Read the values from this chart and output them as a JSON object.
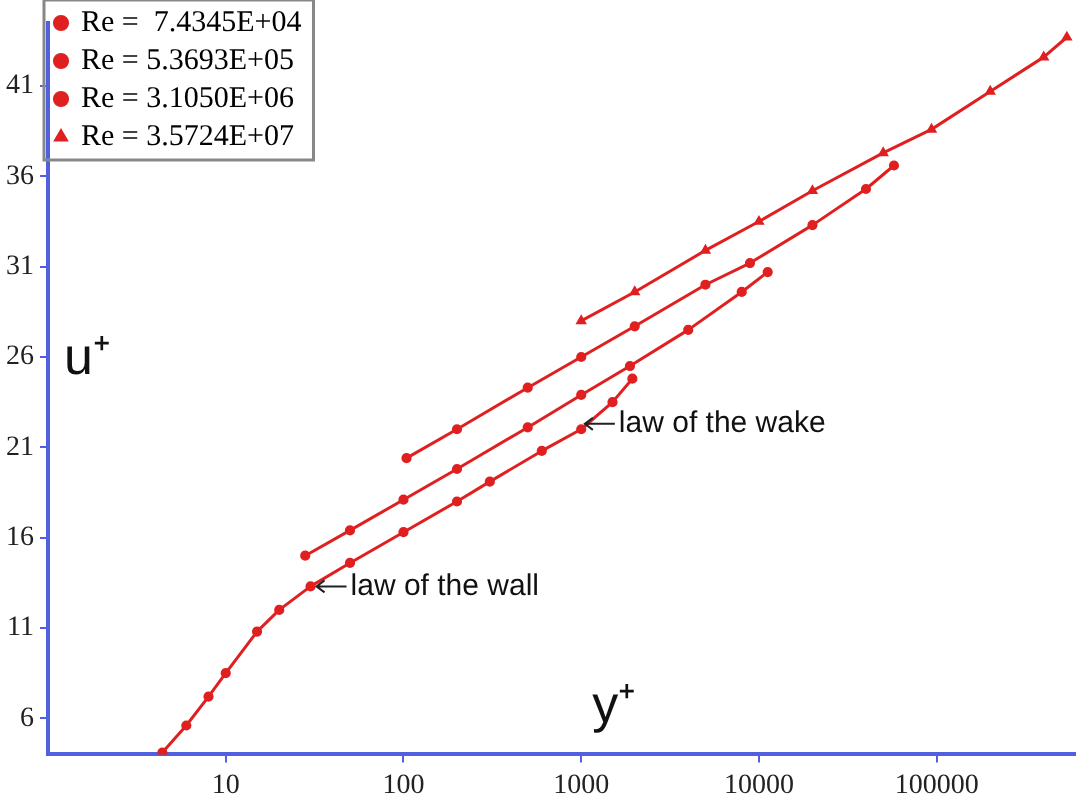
{
  "chart_data": {
    "type": "line",
    "xlabel": "y⁺",
    "ylabel": "u⁺",
    "log": "x",
    "xlim": [
      1,
      600000
    ],
    "ylim": [
      4,
      44.5
    ],
    "xticks": [
      10,
      100,
      1000,
      10000,
      100000
    ],
    "yticks": [
      6,
      11,
      16,
      21,
      26,
      31,
      36,
      41
    ],
    "grid": false,
    "legend": "top left",
    "line_style": "solid",
    "series": [
      {
        "name": "Re =  7.4345E+04",
        "color": "#e02020",
        "marker": "circle",
        "x": [
          4.4,
          6,
          8,
          10,
          15,
          20,
          30,
          50,
          100,
          200,
          306,
          600,
          1000,
          1500,
          1940
        ],
        "values": [
          4.1,
          5.6,
          7.2,
          8.5,
          10.8,
          12.0,
          13.3,
          14.6,
          16.3,
          18.0,
          19.1,
          20.8,
          22.0,
          23.5,
          24.8
        ]
      },
      {
        "name": "Re = 5.3693E+05",
        "color": "#e02020",
        "marker": "circle",
        "x": [
          28,
          50,
          100,
          200,
          500,
          1000,
          1880,
          4000,
          8000,
          11200
        ],
        "values": [
          15.0,
          16.4,
          18.1,
          19.8,
          22.1,
          23.9,
          25.5,
          27.5,
          29.6,
          30.7
        ]
      },
      {
        "name": "Re = 3.1050E+06",
        "color": "#e02020",
        "marker": "circle",
        "x": [
          104,
          200,
          500,
          1000,
          2000,
          5000,
          8900,
          20000,
          40000,
          57500
        ],
        "values": [
          20.4,
          22.0,
          24.3,
          26.0,
          27.7,
          30.0,
          31.2,
          33.3,
          35.3,
          36.6
        ]
      },
      {
        "name": "Re = 3.5724E+07",
        "color": "#e02020",
        "marker": "triangle",
        "x": [
          1000,
          2000,
          5000,
          10000,
          20000,
          50000,
          93500,
          200000,
          400000,
          540000
        ],
        "values": [
          28.0,
          29.6,
          31.9,
          33.5,
          35.2,
          37.3,
          38.6,
          40.7,
          42.6,
          43.7
        ]
      }
    ],
    "annotations": [
      {
        "text": "law of the wall",
        "x": 30,
        "y": 13.3
      },
      {
        "text": "law of the wake",
        "x": 970,
        "y": 22.3
      }
    ]
  }
}
